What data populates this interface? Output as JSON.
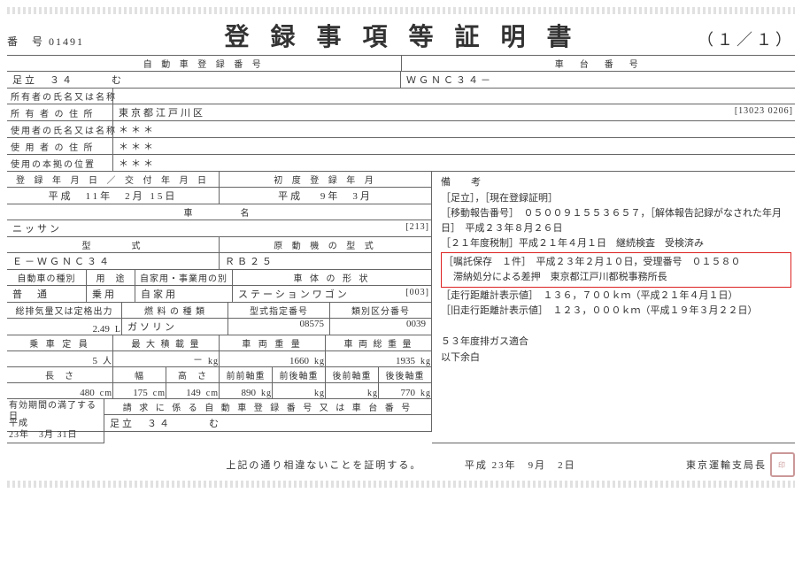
{
  "header": {
    "doc_no_label": "番　号",
    "doc_no": "01491",
    "title": "登録事項等証明書",
    "page": "（１／１）"
  },
  "reg_no": {
    "header_left": "自 動 車 登 録 番 号",
    "header_right": "車　台　番　号",
    "plate": "足立　３４　　　む",
    "vin": "ＷＧＮＣ３４－"
  },
  "owner": {
    "name_label": "所有者の氏名又は名称",
    "name": "",
    "addr_label": "所 有 者 の 住 所",
    "addr": "東京都江戸川区",
    "addr_code": "[13023 0206]"
  },
  "user": {
    "name_label": "使用者の氏名又は名称",
    "name": "＊＊＊",
    "addr_label": "使 用 者 の 住 所",
    "addr": "＊＊＊",
    "base_label": "使用の本拠の位置",
    "base": "＊＊＊"
  },
  "dates": {
    "reg_issue_label": "登 録 年 月 日 ／ 交 付 年 月 日",
    "reg_issue": "平成　11年　2月 15日",
    "first_reg_label": "初 度 登 録 年 月",
    "first_reg": "平成　 9年　3月"
  },
  "car": {
    "maker_label": "車　　　名",
    "maker": "ニッサン",
    "maker_code": "[213]",
    "model_label": "型　　　式",
    "model": "Ｅ－ＷＧＮＣ３４",
    "engine_label": "原 動 機 の 型 式",
    "engine": "ＲＢ２５",
    "kind_label": "自動車の種別",
    "kind": "普　通",
    "use_label": "用　途",
    "use": "乗用",
    "priv_label": "自家用・事業用の別",
    "priv": "自家用",
    "body_label": "車 体 の 形 状",
    "body": "ステーションワゴン",
    "body_code": "[003]",
    "disp_label": "総排気量又は定格出力",
    "disp": "2.49",
    "disp_unit": "L",
    "fuel_label": "燃 料 の 種 類",
    "fuel": "ガソリン",
    "type_no_label": "型式指定番号",
    "type_no": "08575",
    "cat_no_label": "類別区分番号",
    "cat_no": "0039",
    "cap_label": "乗 車 定 員",
    "cap": "5",
    "cap_unit": "人",
    "maxload_label": "最 大 積 載 量",
    "maxload": "－",
    "maxload_unit": "kg",
    "weight_label": "車 両 重 量",
    "weight": "1660",
    "weight_unit": "kg",
    "gross_label": "車 両 総 重 量",
    "gross": "1935",
    "gross_unit": "kg",
    "len_label": "長　さ",
    "len": "480",
    "len_unit": "cm",
    "wid_label": "幅",
    "wid": "175",
    "wid_unit": "cm",
    "hei_label": "高　さ",
    "hei": "149",
    "hei_unit": "cm",
    "ff_label": "前前軸重",
    "ff": "890",
    "ff_unit": "kg",
    "fr_label": "前後軸重",
    "fr": "",
    "rf_label": "後前軸重",
    "rf": "",
    "rr_label": "後後軸重",
    "rr": "770",
    "rr_unit": "kg",
    "expiry_label": "有効期間の満了する日",
    "expiry": "平成\n23年　3月 31日",
    "claim_label": "請 求 に 係 る 自 動 車 登 録 番 号 又 は 車 台 番 号",
    "claim": "足立　３４　　　む"
  },
  "remarks": {
    "label": "備　考",
    "lines": [
      "［足立］，［現在登録証明］",
      "［移動報告番号］　０５００９１５５３６５７，［解体報告記録がなされた年月日］　平成２３年８月２６日",
      "［２１年度税制］平成２１年４月１日　継続検査　受検済み"
    ],
    "boxed": [
      "［嘱託保存　１件］　平成２３年２月１０日，受理番号　０１５８０",
      "　滞納処分による差押　東京都江戸川都税事務所長"
    ],
    "lines2": [
      "［走行距離計表示値］　１３６，７００ｋｍ（平成２１年４月１日）",
      "［旧走行距離計表示値］　１２３，０００ｋｍ（平成１９年３月２２日）",
      "",
      "５３年度排ガス適合",
      "以下余白"
    ]
  },
  "footer": {
    "cert": "上記の通り相違ないことを証明する。",
    "date": "平成 23年　9月　2日",
    "office": "東京運輸支局長",
    "seal": "印"
  },
  "style": {
    "red": "#d22",
    "border": "#666"
  }
}
